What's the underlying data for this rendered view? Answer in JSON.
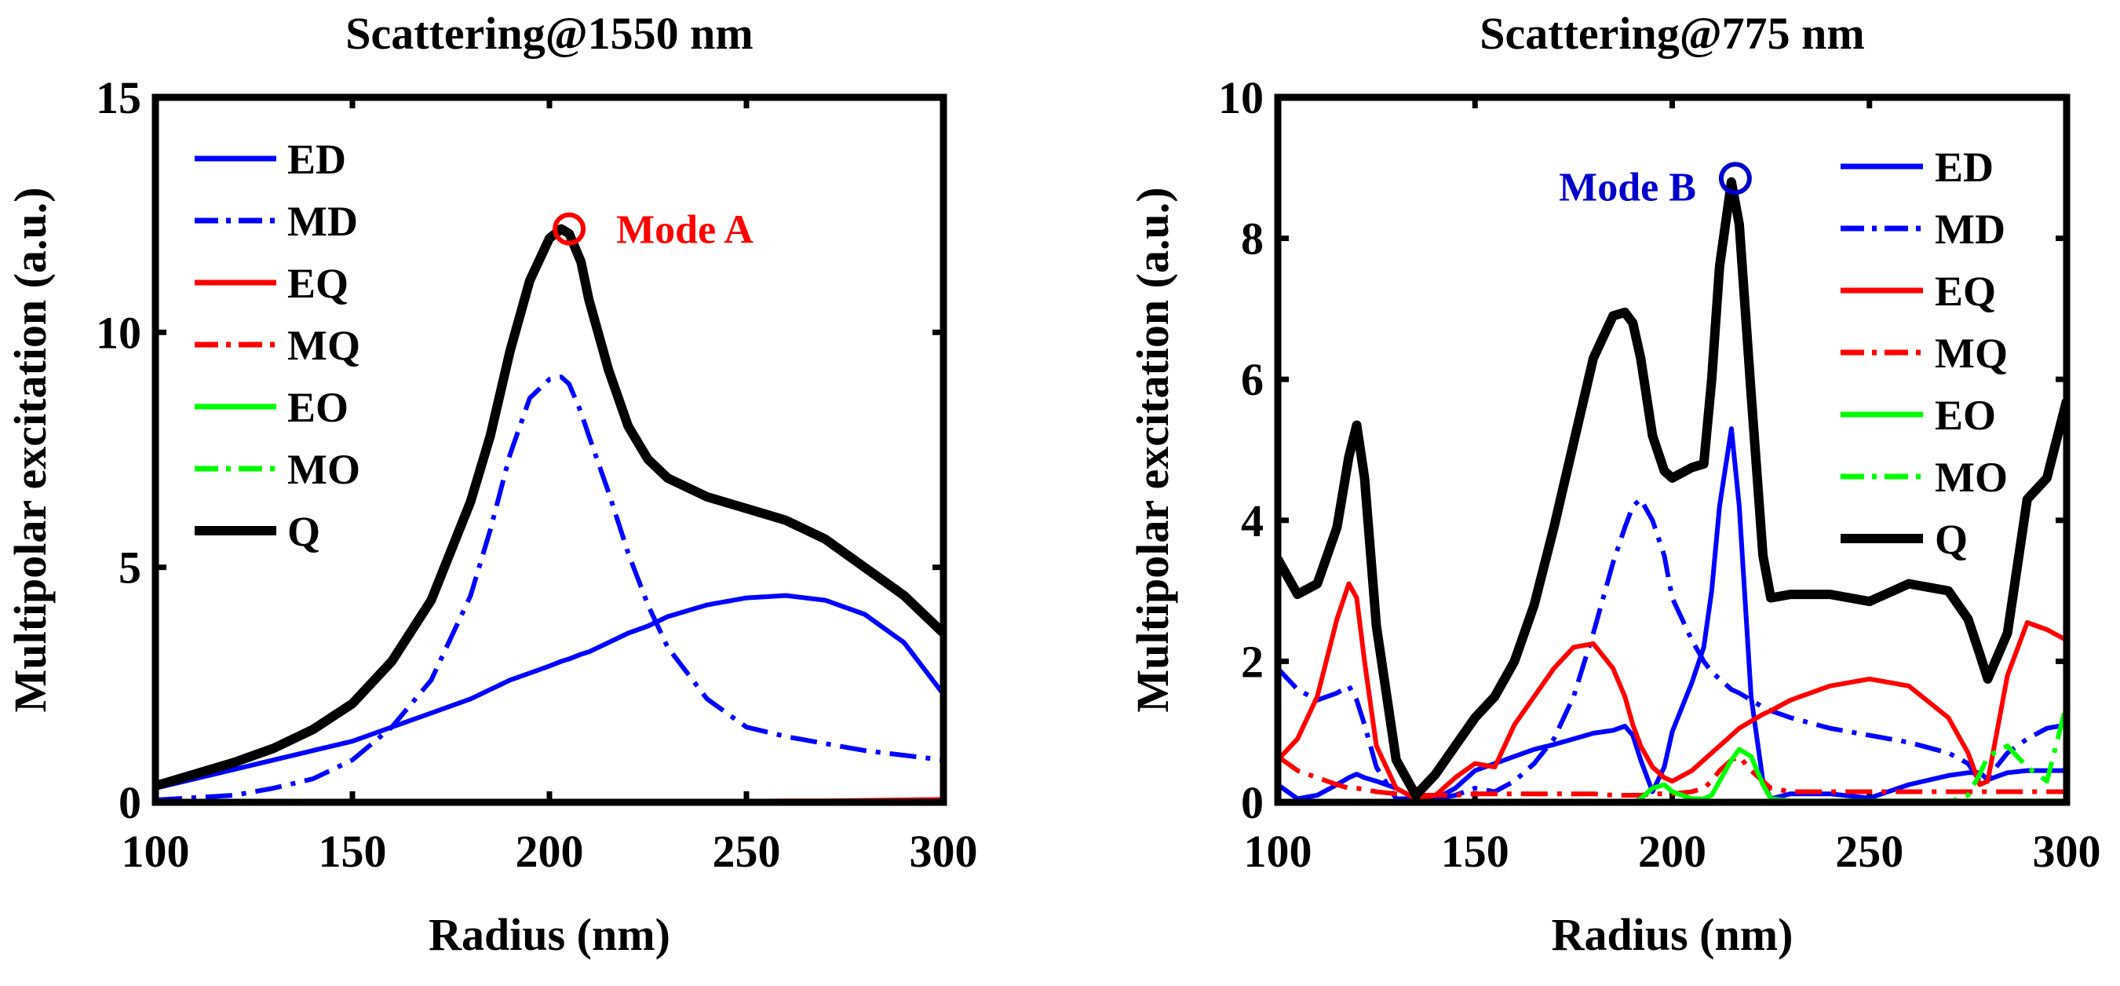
{
  "chart_data": [
    {
      "type": "line",
      "title": "Scattering@1550 nm",
      "xlabel": "Radius (nm)",
      "ylabel": "Multipolar excitation (a.u.)",
      "xlim": [
        100,
        300
      ],
      "ylim": [
        0,
        15
      ],
      "xticks": [
        "100",
        "150",
        "200",
        "250",
        "300"
      ],
      "yticks": [
        "0",
        "5",
        "10",
        "15"
      ],
      "legend_position": "top-left",
      "x": [
        100,
        110,
        120,
        130,
        140,
        150,
        160,
        170,
        180,
        185,
        190,
        195,
        200,
        203,
        205,
        208,
        210,
        215,
        220,
        225,
        230,
        240,
        250,
        260,
        270,
        280,
        290,
        300
      ],
      "series": [
        {
          "name": "ED",
          "color": "#0000ff",
          "dash": "solid",
          "values": [
            0.3,
            0.5,
            0.7,
            0.9,
            1.1,
            1.3,
            1.6,
            1.9,
            2.2,
            2.4,
            2.6,
            2.75,
            2.9,
            3.0,
            3.05,
            3.15,
            3.2,
            3.4,
            3.6,
            3.75,
            3.95,
            4.2,
            4.35,
            4.4,
            4.3,
            4.0,
            3.4,
            2.3
          ]
        },
        {
          "name": "MD",
          "color": "#0000ff",
          "dash": "dashdot",
          "values": [
            0.05,
            0.1,
            0.15,
            0.3,
            0.5,
            0.9,
            1.6,
            2.6,
            4.4,
            5.8,
            7.4,
            8.6,
            9.0,
            9.05,
            8.9,
            8.3,
            7.8,
            6.6,
            5.3,
            4.2,
            3.3,
            2.2,
            1.6,
            1.4,
            1.25,
            1.1,
            1.0,
            0.9
          ]
        },
        {
          "name": "EQ",
          "color": "#ff0000",
          "dash": "solid",
          "values": [
            0,
            0,
            0,
            0,
            0,
            0,
            0,
            0,
            0,
            0,
            0,
            0,
            0.01,
            0.01,
            0.01,
            0.01,
            0.01,
            0.01,
            0.01,
            0.01,
            0.02,
            0.02,
            0.02,
            0.03,
            0.03,
            0.04,
            0.05,
            0.06
          ]
        },
        {
          "name": "MQ",
          "color": "#ff0000",
          "dash": "dashdot",
          "values": [
            0,
            0,
            0,
            0,
            0,
            0,
            0,
            0,
            0,
            0,
            0,
            0,
            0,
            0,
            0,
            0,
            0,
            0,
            0,
            0,
            0,
            0,
            0,
            0,
            0,
            0,
            0,
            0
          ]
        },
        {
          "name": "EO",
          "color": "#00ff00",
          "dash": "solid",
          "values": [
            0,
            0,
            0,
            0,
            0,
            0,
            0,
            0,
            0,
            0,
            0,
            0,
            0,
            0,
            0,
            0,
            0,
            0,
            0,
            0,
            0,
            0,
            0,
            0,
            0,
            0,
            0,
            0
          ]
        },
        {
          "name": "MO",
          "color": "#00ff00",
          "dash": "dashdot",
          "values": [
            0,
            0,
            0,
            0,
            0,
            0,
            0,
            0,
            0,
            0,
            0,
            0,
            0,
            0,
            0,
            0,
            0,
            0,
            0,
            0,
            0,
            0,
            0,
            0,
            0,
            0,
            0,
            0
          ]
        },
        {
          "name": "Q",
          "color": "#000000",
          "dash": "solid",
          "values": [
            0.35,
            0.6,
            0.85,
            1.15,
            1.55,
            2.1,
            3.0,
            4.3,
            6.4,
            7.8,
            9.6,
            11.1,
            12.0,
            12.2,
            12.1,
            11.5,
            10.7,
            9.2,
            8.0,
            7.3,
            6.9,
            6.5,
            6.25,
            6.0,
            5.6,
            5.0,
            4.4,
            3.6
          ]
        }
      ],
      "annotations": [
        {
          "text": "Mode A",
          "x": 205,
          "y": 12.2,
          "color": "#ff0000",
          "marker": "circle"
        }
      ]
    },
    {
      "type": "line",
      "title": "Scattering@775 nm",
      "xlabel": "Radius (nm)",
      "ylabel": "Multipolar excitation (a.u.)",
      "xlim": [
        100,
        300
      ],
      "ylim": [
        0,
        10
      ],
      "xticks": [
        "100",
        "150",
        "200",
        "250",
        "300"
      ],
      "yticks": [
        "0",
        "2",
        "4",
        "6",
        "8",
        "10"
      ],
      "legend_position": "top-right",
      "x": [
        100,
        105,
        110,
        115,
        118,
        120,
        122,
        125,
        130,
        135,
        140,
        145,
        150,
        155,
        160,
        165,
        170,
        175,
        180,
        185,
        188,
        190,
        192,
        195,
        198,
        200,
        205,
        208,
        210,
        212,
        215,
        217,
        220,
        223,
        225,
        230,
        240,
        250,
        260,
        270,
        275,
        278,
        280,
        285,
        290,
        295,
        300
      ],
      "series": [
        {
          "name": "ED",
          "color": "#0000ff",
          "dash": "solid",
          "values": [
            0.25,
            0.05,
            0.1,
            0.25,
            0.35,
            0.4,
            0.35,
            0.3,
            0.2,
            0.05,
            0.05,
            0.2,
            0.45,
            0.55,
            0.65,
            0.75,
            0.82,
            0.9,
            0.98,
            1.02,
            1.08,
            0.95,
            0.6,
            0.15,
            0.5,
            1.0,
            1.7,
            2.2,
            3.0,
            4.2,
            5.3,
            4.2,
            1.5,
            0.3,
            0.05,
            0.12,
            0.12,
            0.06,
            0.25,
            0.38,
            0.42,
            0.42,
            0.32,
            0.42,
            0.45,
            0.45,
            0.45
          ]
        },
        {
          "name": "MD",
          "color": "#0000ff",
          "dash": "dashdot",
          "values": [
            1.9,
            1.6,
            1.45,
            1.55,
            1.65,
            1.45,
            1.1,
            0.5,
            0.05,
            0.05,
            0.05,
            0.1,
            0.2,
            0.15,
            0.3,
            0.55,
            0.9,
            1.5,
            2.4,
            3.4,
            3.9,
            4.2,
            4.3,
            4.0,
            3.5,
            2.9,
            2.3,
            2.0,
            1.85,
            1.75,
            1.6,
            1.55,
            1.45,
            1.35,
            1.3,
            1.2,
            1.05,
            0.95,
            0.85,
            0.7,
            0.55,
            0.3,
            0.35,
            0.7,
            0.9,
            1.05,
            1.1
          ]
        },
        {
          "name": "EQ",
          "color": "#ff0000",
          "dash": "solid",
          "values": [
            0.6,
            0.9,
            1.5,
            2.6,
            3.1,
            2.9,
            2.0,
            0.8,
            0.2,
            0.05,
            0.1,
            0.35,
            0.55,
            0.5,
            1.1,
            1.5,
            1.9,
            2.2,
            2.25,
            1.9,
            1.5,
            1.1,
            0.8,
            0.5,
            0.35,
            0.3,
            0.45,
            0.6,
            0.7,
            0.8,
            0.95,
            1.05,
            1.15,
            1.25,
            1.3,
            1.45,
            1.65,
            1.75,
            1.65,
            1.2,
            0.7,
            0.25,
            0.3,
            1.8,
            2.55,
            2.45,
            2.3
          ]
        },
        {
          "name": "MQ",
          "color": "#ff0000",
          "dash": "dashdot",
          "values": [
            0.65,
            0.45,
            0.35,
            0.25,
            0.2,
            0.2,
            0.18,
            0.15,
            0.12,
            0.1,
            0.1,
            0.1,
            0.12,
            0.12,
            0.12,
            0.12,
            0.12,
            0.12,
            0.12,
            0.1,
            0.1,
            0.1,
            0.1,
            0.12,
            0.12,
            0.12,
            0.15,
            0.2,
            0.3,
            0.45,
            0.6,
            0.65,
            0.45,
            0.3,
            0.2,
            0.15,
            0.15,
            0.15,
            0.15,
            0.15,
            0.15,
            0.15,
            0.15,
            0.15,
            0.15,
            0.15,
            0.15
          ]
        },
        {
          "name": "EO",
          "color": "#00ff00",
          "dash": "solid",
          "values": [
            0,
            0,
            0,
            0,
            0,
            0,
            0,
            0,
            0,
            0,
            0,
            0,
            0,
            0,
            0,
            0,
            0,
            0,
            0,
            0,
            0,
            0,
            0.05,
            0.2,
            0.25,
            0.15,
            0.05,
            0.05,
            0.1,
            0.3,
            0.6,
            0.75,
            0.65,
            0.25,
            0.05,
            0.02,
            0.02,
            0.02,
            0.02,
            0.02,
            0.02,
            0.02,
            0.02,
            0.02,
            0.02,
            0.02,
            0.02
          ]
        },
        {
          "name": "MO",
          "color": "#00ff00",
          "dash": "dashdot",
          "values": [
            0,
            0,
            0,
            0,
            0,
            0,
            0,
            0,
            0,
            0,
            0,
            0,
            0,
            0,
            0,
            0,
            0,
            0,
            0,
            0,
            0,
            0,
            0,
            0,
            0,
            0,
            0,
            0,
            0,
            0,
            0,
            0,
            0,
            0,
            0,
            0,
            0,
            0,
            0,
            0,
            0.1,
            0.4,
            0.65,
            0.8,
            0.5,
            0.3,
            1.4
          ]
        },
        {
          "name": "Q",
          "color": "#000000",
          "dash": "solid",
          "values": [
            3.45,
            2.95,
            3.1,
            3.9,
            4.9,
            5.35,
            4.6,
            2.5,
            0.6,
            0.1,
            0.4,
            0.8,
            1.2,
            1.5,
            2.0,
            2.8,
            3.9,
            5.1,
            6.3,
            6.9,
            6.95,
            6.8,
            6.3,
            5.2,
            4.7,
            4.6,
            4.75,
            4.8,
            6.0,
            7.6,
            8.8,
            8.2,
            5.8,
            3.5,
            2.9,
            2.95,
            2.95,
            2.85,
            3.1,
            3.0,
            2.6,
            2.1,
            1.75,
            2.4,
            4.3,
            4.6,
            5.7
          ]
        }
      ],
      "annotations": [
        {
          "text": "Mode B",
          "x": 216,
          "y": 8.85,
          "color": "#0000cc",
          "marker": "circle"
        }
      ]
    }
  ]
}
